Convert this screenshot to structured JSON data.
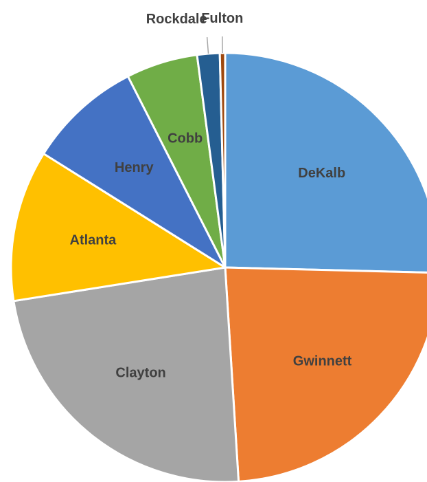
{
  "chart_data": {
    "type": "pie",
    "categories": [
      "DeKalb",
      "Gwinnett",
      "Clayton",
      "Atlanta",
      "Henry",
      "Cobb",
      "Rockdale",
      "Fulton"
    ],
    "values": [
      25.4,
      23.6,
      23.5,
      11.4,
      8.6,
      5.4,
      1.7,
      0.4
    ],
    "colors": [
      "#5B9BD5",
      "#ED7D31",
      "#A5A5A5",
      "#FFC000",
      "#4472C4",
      "#70AD47",
      "#255E91",
      "#9E480E"
    ],
    "start_angle": "12 o'clock",
    "direction": "clockwise",
    "slice_separator_color": "#ffffff",
    "labels_outside": [
      "Rockdale",
      "Fulton"
    ]
  }
}
